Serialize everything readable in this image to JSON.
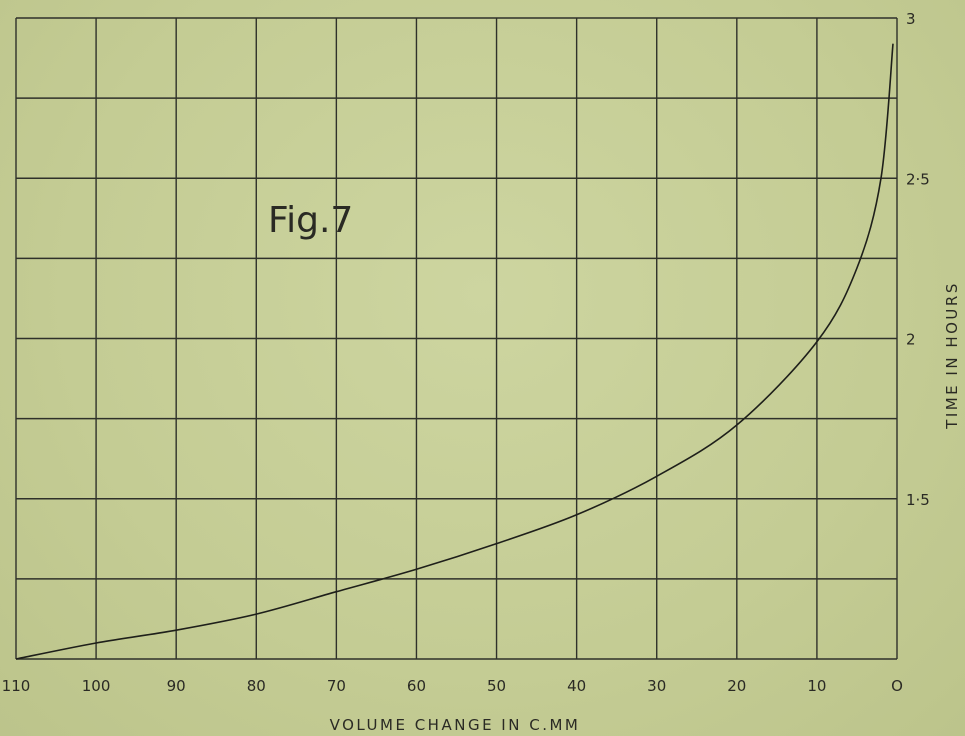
{
  "chart_data": {
    "type": "line",
    "title": "Fig.7",
    "xlabel": "VOLUME CHANGE IN C.MM",
    "ylabel": "TIME IN HOURS",
    "x_reversed": true,
    "xlim": [
      0,
      110
    ],
    "ylim": [
      1,
      3
    ],
    "grid": true,
    "x_ticks": [
      {
        "value": 110,
        "label": "110"
      },
      {
        "value": 100,
        "label": "100"
      },
      {
        "value": 90,
        "label": "90"
      },
      {
        "value": 80,
        "label": "80"
      },
      {
        "value": 70,
        "label": "70"
      },
      {
        "value": 60,
        "label": "60"
      },
      {
        "value": 50,
        "label": "50"
      },
      {
        "value": 40,
        "label": "40"
      },
      {
        "value": 30,
        "label": "30"
      },
      {
        "value": 20,
        "label": "20"
      },
      {
        "value": 10,
        "label": "10"
      },
      {
        "value": 0,
        "label": "O"
      }
    ],
    "y_ticks": [
      {
        "value": 3,
        "label": "3"
      },
      {
        "value": 2.5,
        "label": "2·5"
      },
      {
        "value": 2,
        "label": "2"
      },
      {
        "value": 1.5,
        "label": "1·5"
      }
    ],
    "series": [
      {
        "x": [
          110,
          100,
          90,
          80,
          70,
          60,
          50,
          40,
          30,
          20,
          10,
          5,
          2,
          0.5
        ],
        "y": [
          1.0,
          1.05,
          1.09,
          1.14,
          1.21,
          1.28,
          1.36,
          1.45,
          1.57,
          1.73,
          1.99,
          2.22,
          2.5,
          2.92
        ]
      }
    ]
  }
}
